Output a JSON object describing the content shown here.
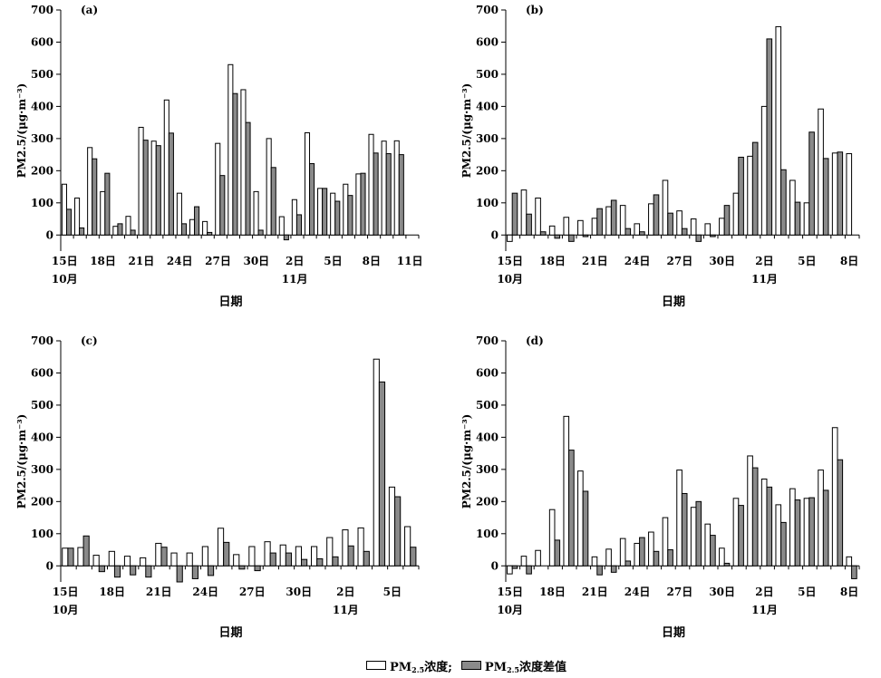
{
  "colors": {
    "concentration": "#ffffff",
    "difference": "#8a8a8a",
    "stroke": "#000000"
  },
  "legend": {
    "pm_prefix": "PM",
    "pm_sub": "2.5",
    "concentration_suffix": "浓度;",
    "difference_suffix": "浓度差值"
  },
  "chart_data": [
    {
      "type": "bar",
      "panel": "(a)",
      "xlabel": "日期",
      "ylabel": "PM2.5/(μg·m⁻³)",
      "ylim": [
        -50,
        700
      ],
      "yticks": [
        0,
        100,
        200,
        300,
        400,
        500,
        600,
        700
      ],
      "x_ticks": [
        "15日",
        "18日",
        "21日",
        "24日",
        "27日",
        "30日",
        "2日",
        "5日",
        "8日",
        "11日"
      ],
      "month_labels": [
        {
          "label": "10月",
          "at": "15日"
        },
        {
          "label": "11月",
          "at": "2日"
        }
      ],
      "categories": [
        "10-15",
        "10-16",
        "10-17",
        "10-18",
        "10-19",
        "10-20",
        "10-21",
        "10-22",
        "10-23",
        "10-24",
        "10-25",
        "10-26",
        "10-27",
        "10-28",
        "10-29",
        "10-30",
        "10-31",
        "11-01",
        "11-02",
        "11-03",
        "11-04",
        "11-05",
        "11-06",
        "11-07",
        "11-08",
        "11-09",
        "11-10",
        "11-11"
      ],
      "series": [
        {
          "name": "PM2.5浓度",
          "values": [
            158,
            115,
            272,
            135,
            27,
            58,
            335,
            292,
            420,
            130,
            48,
            42,
            285,
            530,
            452,
            135,
            300,
            57,
            110,
            318,
            145,
            130,
            158,
            190,
            313,
            292,
            293,
            0
          ]
        },
        {
          "name": "PM2.5浓度差值",
          "values": [
            80,
            22,
            237,
            192,
            35,
            15,
            295,
            278,
            317,
            35,
            88,
            8,
            185,
            440,
            350,
            15,
            210,
            -15,
            63,
            222,
            145,
            105,
            123,
            192,
            255,
            253,
            250,
            0
          ]
        }
      ]
    },
    {
      "type": "bar",
      "panel": "(b)",
      "xlabel": "日期",
      "ylabel": "PM2.5/(μg·m⁻³)",
      "ylim": [
        -50,
        700
      ],
      "yticks": [
        0,
        100,
        200,
        300,
        400,
        500,
        600,
        700
      ],
      "x_ticks": [
        "15日",
        "18日",
        "21日",
        "24日",
        "27日",
        "30日",
        "2日",
        "5日",
        "8日"
      ],
      "month_labels": [
        {
          "label": "10月",
          "at": "15日"
        },
        {
          "label": "11月",
          "at": "2日"
        }
      ],
      "categories": [
        "10-15",
        "10-16",
        "10-17",
        "10-18",
        "10-19",
        "10-20",
        "10-21",
        "10-22",
        "10-23",
        "10-24",
        "10-25",
        "10-26",
        "10-27",
        "10-28",
        "10-29",
        "10-30",
        "10-31",
        "11-01",
        "11-02",
        "11-03",
        "11-04",
        "11-05",
        "11-06",
        "11-07",
        "11-08"
      ],
      "series": [
        {
          "name": "PM2.5浓度",
          "values": [
            -20,
            140,
            115,
            28,
            55,
            45,
            52,
            88,
            92,
            35,
            97,
            170,
            75,
            50,
            35,
            52,
            130,
            245,
            400,
            648,
            170,
            100,
            392,
            255,
            253
          ]
        },
        {
          "name": "PM2.5浓度差值",
          "values": [
            130,
            65,
            10,
            -10,
            -20,
            -5,
            82,
            108,
            20,
            10,
            125,
            68,
            20,
            -20,
            -5,
            92,
            242,
            288,
            610,
            203,
            102,
            320,
            238,
            258,
            0
          ]
        }
      ]
    },
    {
      "type": "bar",
      "panel": "(c)",
      "xlabel": "日期",
      "ylabel": "PM2.5/(μg·m⁻³)",
      "ylim": [
        -50,
        700
      ],
      "yticks": [
        0,
        100,
        200,
        300,
        400,
        500,
        600,
        700
      ],
      "x_ticks": [
        "15日",
        "18日",
        "21日",
        "24日",
        "27日",
        "30日",
        "2日",
        "5日"
      ],
      "month_labels": [
        {
          "label": "10月",
          "at": "15日"
        },
        {
          "label": "11月",
          "at": "2日"
        }
      ],
      "categories": [
        "10-15",
        "10-16",
        "10-17",
        "10-18",
        "10-19",
        "10-20",
        "10-21",
        "10-22",
        "10-23",
        "10-24",
        "10-25",
        "10-26",
        "10-27",
        "10-28",
        "10-29",
        "10-30",
        "10-31",
        "11-01",
        "11-02",
        "11-03",
        "11-04",
        "11-05",
        "11-06"
      ],
      "series": [
        {
          "name": "PM2.5浓度",
          "values": [
            55,
            57,
            33,
            45,
            30,
            25,
            70,
            40,
            40,
            60,
            117,
            35,
            60,
            75,
            65,
            60,
            60,
            88,
            112,
            118,
            643,
            245,
            122
          ]
        },
        {
          "name": "PM2.5浓度差值",
          "values": [
            55,
            93,
            -18,
            -35,
            -28,
            -35,
            58,
            -50,
            -40,
            -30,
            73,
            -10,
            -15,
            40,
            40,
            20,
            22,
            28,
            62,
            45,
            572,
            215,
            58
          ]
        }
      ]
    },
    {
      "type": "bar",
      "panel": "(d)",
      "xlabel": "日期",
      "ylabel": "PM2.5/(μg·m⁻³)",
      "ylim": [
        -50,
        700
      ],
      "yticks": [
        0,
        100,
        200,
        300,
        400,
        500,
        600,
        700
      ],
      "x_ticks": [
        "15日",
        "18日",
        "21日",
        "24日",
        "27日",
        "30日",
        "2日",
        "5日",
        "8日"
      ],
      "month_labels": [
        {
          "label": "10月",
          "at": "15日"
        },
        {
          "label": "11月",
          "at": "2日"
        }
      ],
      "categories": [
        "10-15",
        "10-16",
        "10-17",
        "10-18",
        "10-19",
        "10-20",
        "10-21",
        "10-22",
        "10-23",
        "10-24",
        "10-25",
        "10-26",
        "10-27",
        "10-28",
        "10-29",
        "10-30",
        "10-31",
        "11-01",
        "11-02",
        "11-03",
        "11-04",
        "11-05",
        "11-06",
        "11-07",
        "11-08"
      ],
      "series": [
        {
          "name": "PM2.5浓度",
          "values": [
            -25,
            30,
            48,
            175,
            465,
            295,
            28,
            52,
            85,
            70,
            105,
            150,
            298,
            182,
            130,
            55,
            210,
            342,
            270,
            190,
            240,
            210,
            298,
            430,
            28
          ]
        },
        {
          "name": "PM2.5浓度差值",
          "values": [
            -8,
            -25,
            0,
            80,
            360,
            232,
            -28,
            -20,
            15,
            88,
            45,
            50,
            225,
            200,
            95,
            8,
            188,
            305,
            245,
            135,
            205,
            212,
            235,
            330,
            -40
          ]
        }
      ]
    }
  ]
}
